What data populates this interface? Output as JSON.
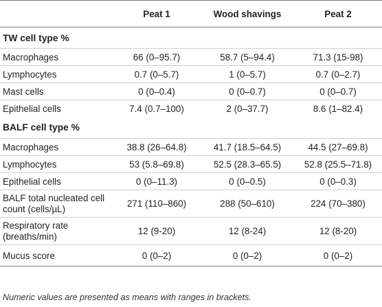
{
  "header": {
    "col0": "",
    "col1": "Peat 1",
    "col2": "Wood shavings",
    "col3": "Peat 2"
  },
  "sections": [
    {
      "title": "TW cell type %",
      "rows": [
        {
          "label": "Macrophages",
          "values": [
            "66 (0–95.7)",
            "58.7 (5–94.4)",
            "71.3 (15-98)"
          ]
        },
        {
          "label": "Lymphocytes",
          "values": [
            "0.7 (0–5.7)",
            "1 (0–5.7)",
            "0.7 (0–2.7)"
          ]
        },
        {
          "label": "Mast cells",
          "values": [
            "0 (0–0.4)",
            "0 (0–0.7)",
            "0 (0–0.7)"
          ]
        },
        {
          "label": "Epithelial cells",
          "values": [
            "7.4 (0.7–100)",
            "2 (0–37.7)",
            "8.6 (1–82.4)"
          ]
        }
      ]
    },
    {
      "title": "BALF cell type %",
      "rows": [
        {
          "label": "Macrophages",
          "values": [
            "38.8 (26–64.8)",
            "41.7 (18.5–64.5)",
            "44.5 (27–69.8)"
          ]
        },
        {
          "label": "Lymphocytes",
          "values": [
            "53 (5.8–69.8)",
            "52.5 (28.3–65.5)",
            "52.8 (25.5–71.8)"
          ]
        },
        {
          "label": "Epithelial cells",
          "values": [
            "0 (0–11.3)",
            "0 (0–0.5)",
            "0 (0–0.3)"
          ]
        },
        {
          "label": "BALF total nucleated cell count (cells/µL)",
          "values": [
            "271 (110–860)",
            "288 (50–610)",
            "224 (70–380)"
          ]
        },
        {
          "label": "Respiratory rate (breaths/min)",
          "values": [
            "12 (9-20)",
            "12 (8-24)",
            "12 (8-20)"
          ]
        },
        {
          "label": "Mucus score",
          "values": [
            "0 (0–2)",
            "0 (0–2)",
            "0 (0–2)"
          ]
        }
      ]
    }
  ],
  "footnote": "Numeric values are presented as means with ranges in brackets."
}
